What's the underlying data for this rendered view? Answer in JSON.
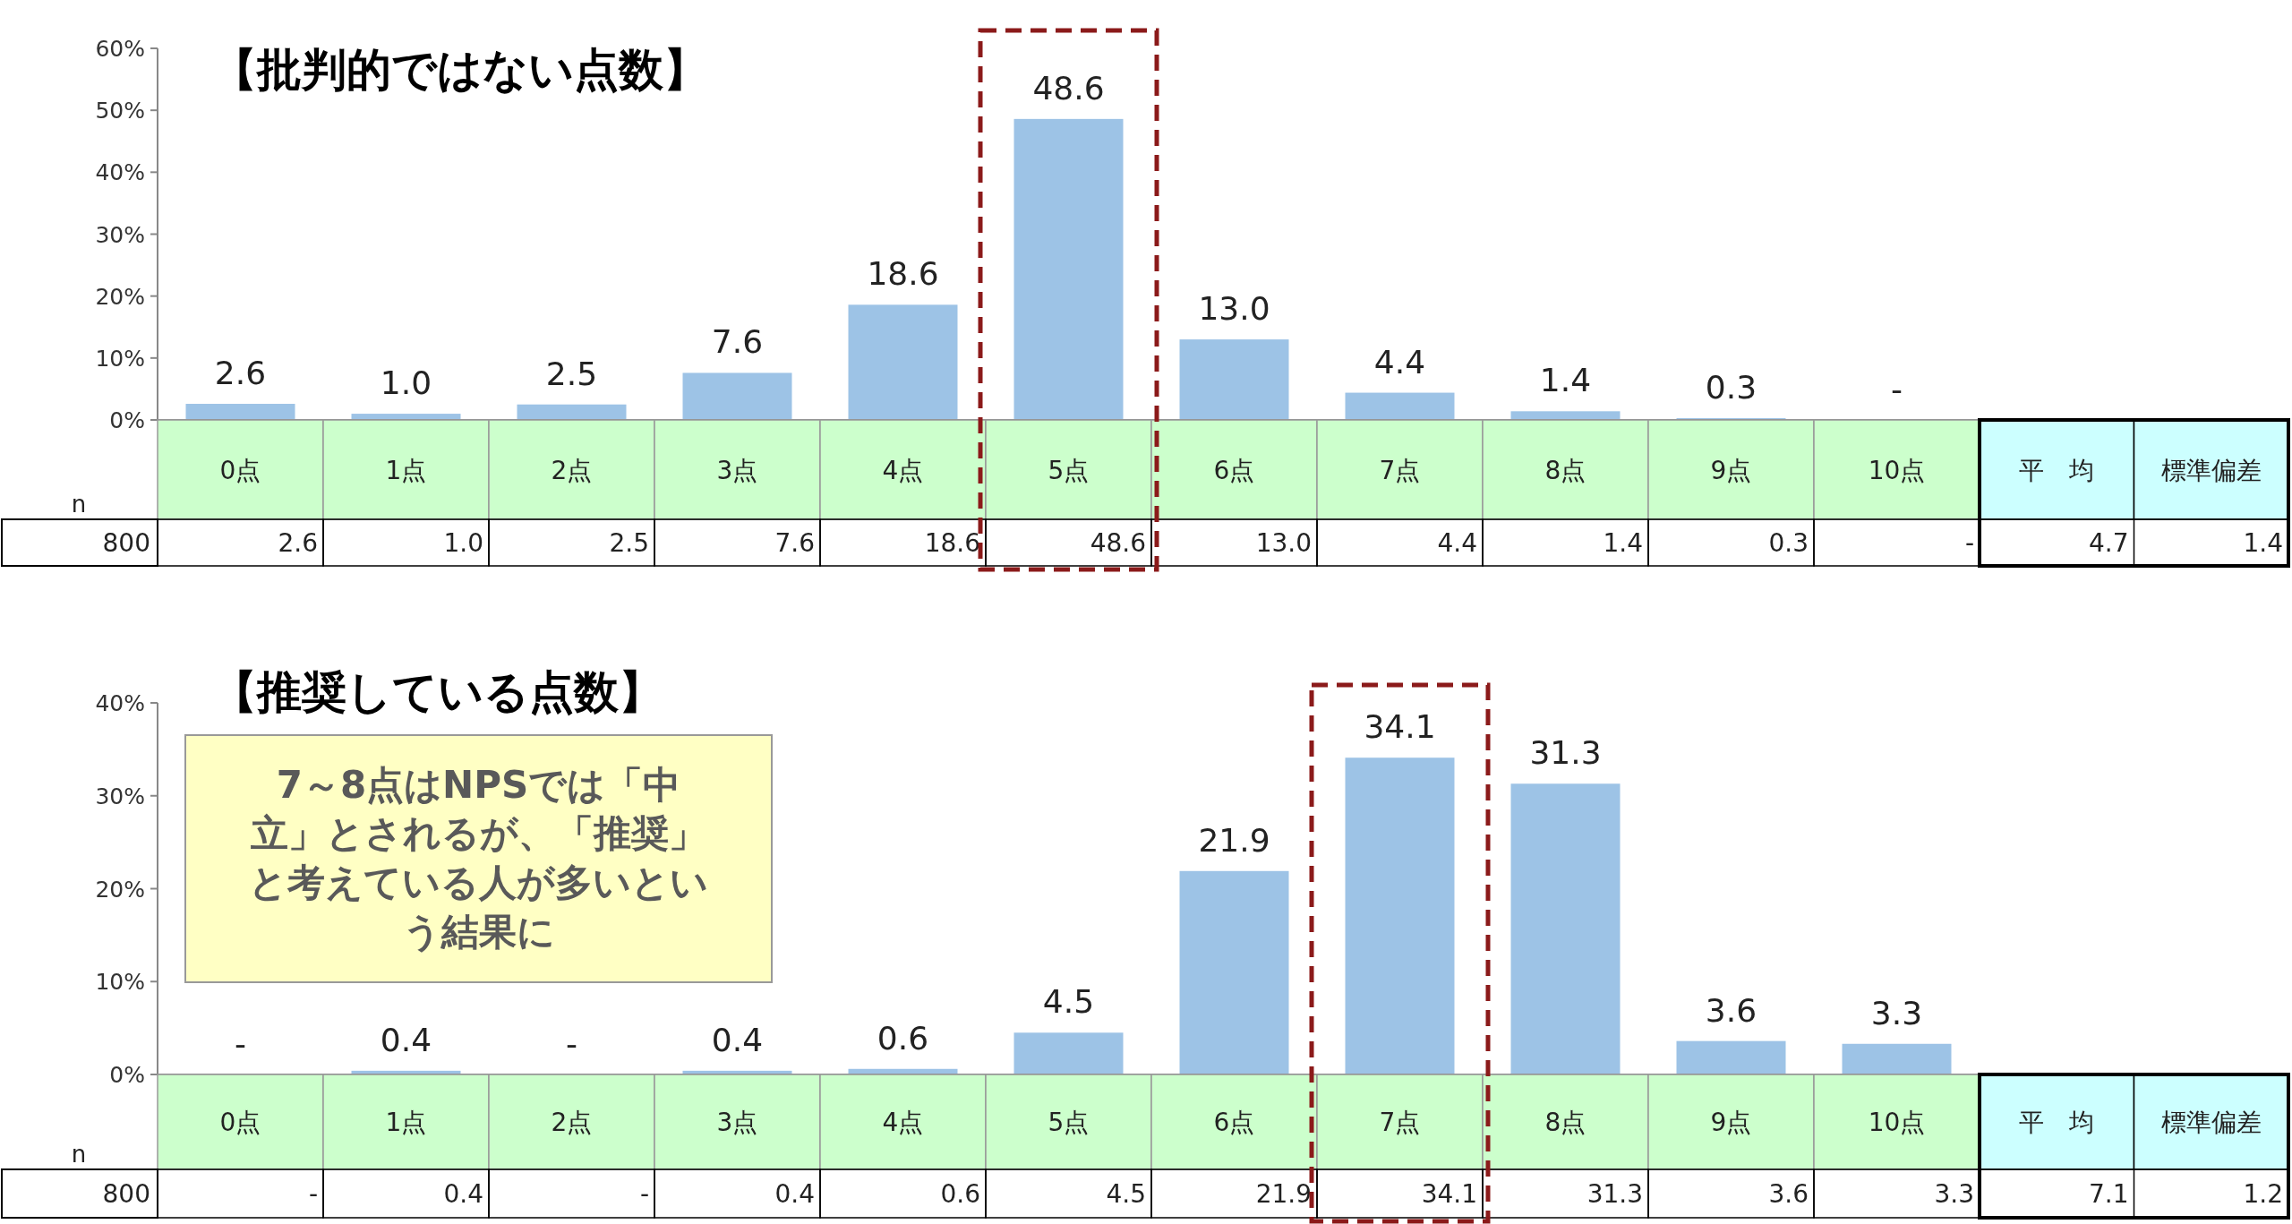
{
  "chart_data": [
    {
      "type": "bar",
      "title": "【批判的ではない点数】",
      "categories": [
        "0点",
        "1点",
        "2点",
        "3点",
        "4点",
        "5点",
        "6点",
        "7点",
        "8点",
        "9点",
        "10点"
      ],
      "values": [
        2.6,
        1.0,
        2.5,
        7.6,
        18.6,
        48.6,
        13.0,
        4.4,
        1.4,
        0.3,
        null
      ],
      "value_labels": [
        "2.6",
        "1.0",
        "2.5",
        "7.6",
        "18.6",
        "48.6",
        "13.0",
        "4.4",
        "1.4",
        "0.3",
        "-"
      ],
      "color": "#9dc3e6",
      "ylim": [
        0,
        60
      ],
      "yticks": [
        {
          "value": 0,
          "label": "0%"
        },
        {
          "value": 10,
          "label": "10%"
        },
        {
          "value": 20,
          "label": "20%"
        },
        {
          "value": 30,
          "label": "30%"
        },
        {
          "value": 40,
          "label": "40%"
        },
        {
          "value": 50,
          "label": "50%"
        },
        {
          "value": 60,
          "label": "60%"
        }
      ],
      "annotations": [
        "n",
        "800",
        "平　均",
        "標準偏差",
        "4.7",
        "1.4"
      ]
    },
    {
      "type": "bar",
      "title": "【推奨している点数】",
      "categories": [
        "0点",
        "1点",
        "2点",
        "3点",
        "4点",
        "5点",
        "6点",
        "7点",
        "8点",
        "9点",
        "10点"
      ],
      "values": [
        null,
        0.4,
        null,
        0.4,
        0.6,
        4.5,
        21.9,
        34.1,
        31.3,
        3.6,
        3.3
      ],
      "value_labels": [
        "-",
        "0.4",
        "-",
        "0.4",
        "0.6",
        "4.5",
        "21.9",
        "34.1",
        "31.3",
        "3.6",
        "3.3"
      ],
      "color": "#9dc3e6",
      "ylim": [
        0,
        40
      ],
      "yticks": [
        {
          "value": 0,
          "label": "0%"
        },
        {
          "value": 10,
          "label": "10%"
        },
        {
          "value": 20,
          "label": "20%"
        },
        {
          "value": 30,
          "label": "30%"
        },
        {
          "value": 40,
          "label": "40%"
        }
      ],
      "annotations": [
        "n",
        "800",
        "平　均",
        "標準偏差",
        "7.1",
        "1.2",
        "7～8点はNPSでは「中立」とされるが、「推奨」と考えている人が多いという結果に"
      ]
    }
  ]
}
